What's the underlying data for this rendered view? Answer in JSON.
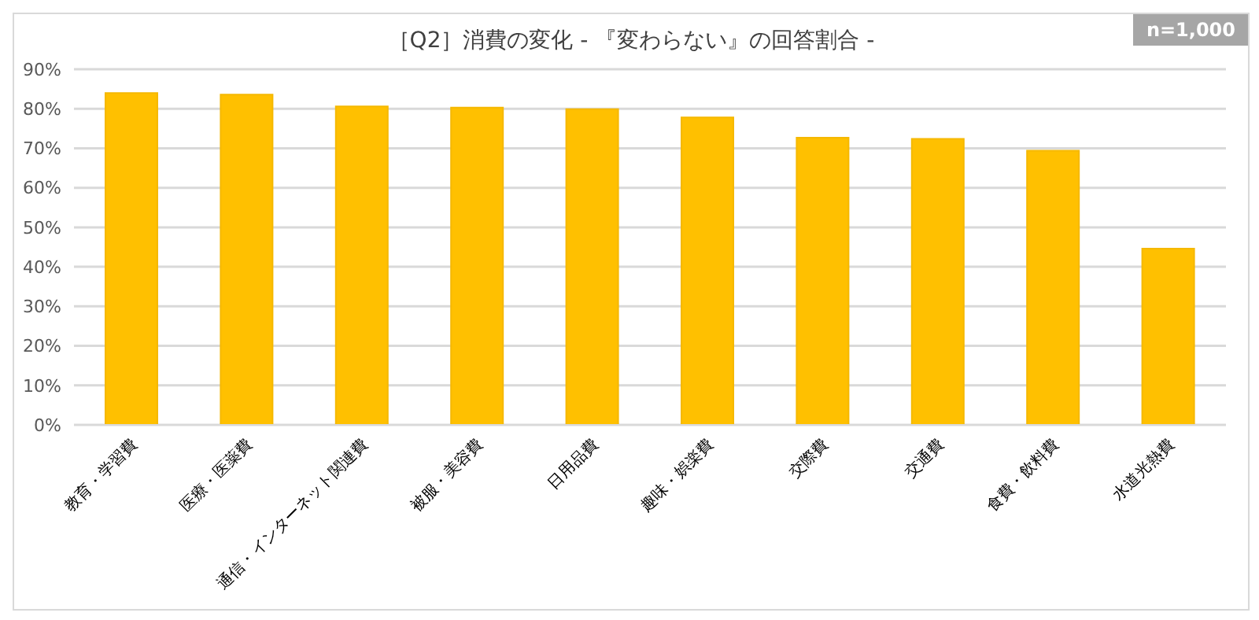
{
  "chart_data": {
    "type": "bar",
    "title": "［Q2］消費の変化 - 『変わらない』の回答割合 -",
    "annotations": [
      "n=1,000"
    ],
    "categories": [
      "教育・学習費",
      "医療・医薬費",
      "通信・インターネット関連費",
      "被服・美容費",
      "日用品費",
      "趣味・娯楽費",
      "交際費",
      "交通費",
      "食費・飲料費",
      "水道光熱費"
    ],
    "values": [
      84.0,
      83.6,
      80.6,
      80.3,
      79.9,
      77.8,
      72.7,
      72.4,
      69.4,
      44.6
    ],
    "color": "#ffc000",
    "ylim": [
      0,
      90
    ],
    "yticks": [
      {
        "value": 0,
        "label": "0%"
      },
      {
        "value": 10,
        "label": "10%"
      },
      {
        "value": 20,
        "label": "20%"
      },
      {
        "value": 30,
        "label": "30%"
      },
      {
        "value": 40,
        "label": "40%"
      },
      {
        "value": 50,
        "label": "50%"
      },
      {
        "value": 60,
        "label": "60%"
      },
      {
        "value": 70,
        "label": "70%"
      },
      {
        "value": 80,
        "label": "80%"
      },
      {
        "value": 90,
        "label": "90%"
      }
    ],
    "grid": "y"
  }
}
